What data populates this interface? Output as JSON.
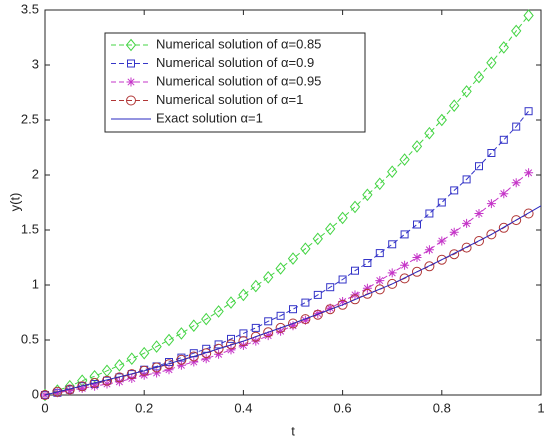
{
  "chart_data": {
    "type": "line",
    "xlabel": "t",
    "ylabel": "y(t)",
    "xlim": [
      0,
      1
    ],
    "ylim": [
      0,
      3.5
    ],
    "xticks": [
      0,
      0.2,
      0.4,
      0.6,
      0.8,
      1
    ],
    "yticks": [
      0,
      0.5,
      1,
      1.5,
      2,
      2.5,
      3,
      3.5
    ],
    "legend": "upper left",
    "x": [
      0,
      0.025,
      0.05,
      0.075,
      0.1,
      0.125,
      0.15,
      0.175,
      0.2,
      0.225,
      0.25,
      0.275,
      0.3,
      0.325,
      0.35,
      0.375,
      0.4,
      0.425,
      0.45,
      0.475,
      0.5,
      0.525,
      0.55,
      0.575,
      0.6,
      0.625,
      0.65,
      0.675,
      0.7,
      0.725,
      0.75,
      0.775,
      0.8,
      0.825,
      0.85,
      0.875,
      0.9,
      0.925,
      0.95,
      0.975
    ],
    "series": [
      {
        "name": "Numerical solution of α=0.85",
        "color": "#44d444",
        "marker": "diamond",
        "style": "dashed",
        "values": [
          0,
          0.04,
          0.08,
          0.13,
          0.17,
          0.22,
          0.27,
          0.33,
          0.38,
          0.44,
          0.5,
          0.56,
          0.63,
          0.69,
          0.76,
          0.84,
          0.91,
          0.99,
          1.07,
          1.15,
          1.24,
          1.33,
          1.42,
          1.51,
          1.61,
          1.71,
          1.82,
          1.92,
          2.03,
          2.14,
          2.26,
          2.38,
          2.5,
          2.63,
          2.76,
          2.89,
          3.02,
          3.16,
          3.31,
          3.45
        ]
      },
      {
        "name": "Numerical solution of α=0.9",
        "color": "#3535c8",
        "marker": "square",
        "style": "dashed",
        "values": [
          0,
          0.02,
          0.05,
          0.08,
          0.1,
          0.13,
          0.16,
          0.19,
          0.23,
          0.26,
          0.3,
          0.34,
          0.38,
          0.42,
          0.46,
          0.51,
          0.56,
          0.61,
          0.67,
          0.72,
          0.78,
          0.84,
          0.91,
          0.98,
          1.05,
          1.13,
          1.2,
          1.29,
          1.37,
          1.46,
          1.55,
          1.65,
          1.75,
          1.86,
          1.96,
          2.08,
          2.2,
          2.32,
          2.44,
          2.58
        ]
      },
      {
        "name": "Numerical solution of α=0.95",
        "color": "#c535c8",
        "marker": "asterisk",
        "style": "dashed",
        "values": [
          0,
          0.02,
          0.04,
          0.06,
          0.08,
          0.1,
          0.12,
          0.15,
          0.18,
          0.2,
          0.23,
          0.27,
          0.3,
          0.33,
          0.37,
          0.41,
          0.45,
          0.49,
          0.54,
          0.58,
          0.63,
          0.68,
          0.74,
          0.79,
          0.85,
          0.91,
          0.97,
          1.04,
          1.11,
          1.18,
          1.25,
          1.32,
          1.4,
          1.48,
          1.56,
          1.65,
          1.74,
          1.83,
          1.93,
          2.02
        ]
      },
      {
        "name": "Numerical solution of α=1",
        "color": "#b03535",
        "marker": "circle",
        "style": "dashed",
        "values": [
          0,
          0.03,
          0.05,
          0.08,
          0.11,
          0.13,
          0.16,
          0.19,
          0.22,
          0.25,
          0.28,
          0.32,
          0.35,
          0.38,
          0.42,
          0.46,
          0.49,
          0.53,
          0.57,
          0.61,
          0.65,
          0.69,
          0.73,
          0.78,
          0.82,
          0.87,
          0.92,
          0.96,
          1.01,
          1.06,
          1.12,
          1.17,
          1.23,
          1.28,
          1.34,
          1.4,
          1.46,
          1.52,
          1.59,
          1.65
        ]
      },
      {
        "name": "Exact solution α=1",
        "color": "#2a2ac0",
        "marker": "none",
        "style": "solid",
        "x": [
          0,
          0.1,
          0.2,
          0.3,
          0.4,
          0.5,
          0.6,
          0.7,
          0.8,
          0.9,
          1
        ],
        "values": [
          0,
          0.11,
          0.22,
          0.35,
          0.49,
          0.65,
          0.82,
          1.01,
          1.23,
          1.46,
          1.72
        ]
      }
    ]
  }
}
